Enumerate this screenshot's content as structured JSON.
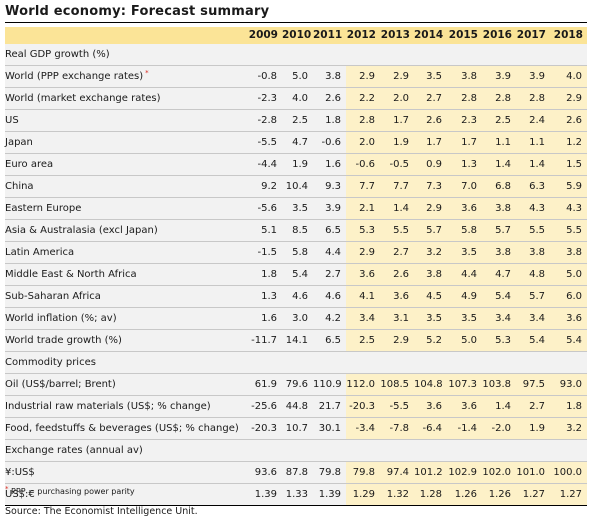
{
  "title": "World economy: Forecast summary",
  "years": [
    "2009",
    "2010",
    "2011",
    "2012",
    "2013",
    "2014",
    "2015",
    "2016",
    "2017",
    "2018"
  ],
  "sections": [
    {
      "label": "Real GDP growth (%)",
      "rows": [
        {
          "label": "World (PPP exchange rates)",
          "marker": "*",
          "indent": 0,
          "values": [
            "-0.8",
            "5.0",
            "3.8",
            "2.9",
            "2.9",
            "3.5",
            "3.8",
            "3.9",
            "3.9",
            "4.0"
          ]
        },
        {
          "label": "World (market exchange rates)",
          "indent": 0,
          "values": [
            "-2.3",
            "4.0",
            "2.6",
            "2.2",
            "2.0",
            "2.7",
            "2.8",
            "2.8",
            "2.8",
            "2.9"
          ]
        },
        {
          "label": "US",
          "indent": 1,
          "values": [
            "-2.8",
            "2.5",
            "1.8",
            "2.8",
            "1.7",
            "2.6",
            "2.3",
            "2.5",
            "2.4",
            "2.6"
          ]
        },
        {
          "label": "Japan",
          "indent": 1,
          "values": [
            "-5.5",
            "4.7",
            "-0.6",
            "2.0",
            "1.9",
            "1.7",
            "1.7",
            "1.1",
            "1.1",
            "1.2"
          ]
        },
        {
          "label": "Euro area",
          "indent": 1,
          "values": [
            "-4.4",
            "1.9",
            "1.6",
            "-0.6",
            "-0.5",
            "0.9",
            "1.3",
            "1.4",
            "1.4",
            "1.5"
          ]
        },
        {
          "label": "China",
          "indent": 1,
          "values": [
            "9.2",
            "10.4",
            "9.3",
            "7.7",
            "7.7",
            "7.3",
            "7.0",
            "6.8",
            "6.3",
            "5.9"
          ]
        },
        {
          "label": "Eastern Europe",
          "indent": 1,
          "values": [
            "-5.6",
            "3.5",
            "3.9",
            "2.1",
            "1.4",
            "2.9",
            "3.6",
            "3.8",
            "4.3",
            "4.3"
          ]
        },
        {
          "label": "Asia & Australasia (excl Japan)",
          "indent": 1,
          "values": [
            "5.1",
            "8.5",
            "6.5",
            "5.3",
            "5.5",
            "5.7",
            "5.8",
            "5.7",
            "5.5",
            "5.5"
          ]
        },
        {
          "label": "Latin America",
          "indent": 1,
          "values": [
            "-1.5",
            "5.8",
            "4.4",
            "2.9",
            "2.7",
            "3.2",
            "3.5",
            "3.8",
            "3.8",
            "3.8"
          ]
        },
        {
          "label": "Middle East & North Africa",
          "indent": 1,
          "values": [
            "1.8",
            "5.4",
            "2.7",
            "3.6",
            "2.6",
            "3.8",
            "4.4",
            "4.7",
            "4.8",
            "5.0"
          ]
        },
        {
          "label": "Sub-Saharan Africa",
          "indent": 1,
          "values": [
            "1.3",
            "4.6",
            "4.6",
            "4.1",
            "3.6",
            "4.5",
            "4.9",
            "5.4",
            "5.7",
            "6.0"
          ]
        }
      ]
    },
    {
      "label": null,
      "rows": [
        {
          "label": "World inflation (%; av)",
          "indent": 0,
          "values": [
            "1.6",
            "3.0",
            "4.2",
            "3.4",
            "3.1",
            "3.5",
            "3.5",
            "3.4",
            "3.4",
            "3.6"
          ]
        },
        {
          "label": "World trade growth (%)",
          "indent": 0,
          "values": [
            "-11.7",
            "14.1",
            "6.5",
            "2.5",
            "2.9",
            "5.2",
            "5.0",
            "5.3",
            "5.4",
            "5.4"
          ]
        }
      ]
    },
    {
      "label": "Commodity prices",
      "rows": [
        {
          "label": "Oil (US$/barrel; Brent)",
          "indent": 1,
          "values": [
            "61.9",
            "79.6",
            "110.9",
            "112.0",
            "108.5",
            "104.8",
            "107.3",
            "103.8",
            "97.5",
            "93.0"
          ]
        },
        {
          "label": "Industrial raw materials (US$; % change)",
          "indent": 1,
          "values": [
            "-25.6",
            "44.8",
            "21.7",
            "-20.3",
            "-5.5",
            "3.6",
            "3.6",
            "1.4",
            "2.7",
            "1.8"
          ]
        },
        {
          "label": "Food, feedstuffs & beverages (US$; % change)",
          "indent": 1,
          "values": [
            "-20.3",
            "10.7",
            "30.1",
            "-3.4",
            "-7.8",
            "-6.4",
            "-1.4",
            "-2.0",
            "1.9",
            "3.2"
          ]
        }
      ]
    },
    {
      "label": "Exchange rates (annual av)",
      "rows": [
        {
          "label": "¥:US$",
          "indent": 1,
          "values": [
            "93.6",
            "87.8",
            "79.8",
            "79.8",
            "97.4",
            "101.2",
            "102.9",
            "102.0",
            "101.0",
            "100.0"
          ]
        },
        {
          "label": "US$:€",
          "indent": 1,
          "values": [
            "1.39",
            "1.33",
            "1.39",
            "1.29",
            "1.32",
            "1.28",
            "1.26",
            "1.26",
            "1.27",
            "1.27"
          ]
        }
      ]
    }
  ],
  "footnote": {
    "marker": "*",
    "text": "PPP = purchasing power parity"
  },
  "source": "Source: The Economist Intelligence Unit."
}
